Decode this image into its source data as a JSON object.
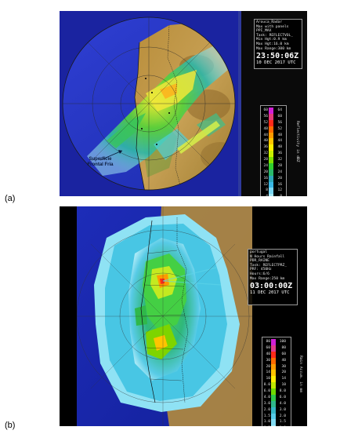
{
  "figure_a": {
    "label": "(a)",
    "info": {
      "line1": "Arouca_Radar",
      "line2": "Max with panels",
      "line3": "PPI_MAX",
      "line4": "Task: REFLECTVOL_",
      "line5": "Min Hgt:0.9 km",
      "line6": "Max Hgt:16.0 km",
      "line7": "Max Range:300 km",
      "time": "23:50:06Z",
      "date": "10 DEC 2017 UTC"
    },
    "legend": {
      "unit": "Reflectivity in dBZ",
      "rows": [
        {
          "l": "60",
          "r": "64",
          "color": "#d21fd6"
        },
        {
          "l": "56",
          "r": "60",
          "color": "#e33a7a"
        },
        {
          "l": "52",
          "r": "56",
          "color": "#ff2a1a"
        },
        {
          "l": "48",
          "r": "52",
          "color": "#ff6a00"
        },
        {
          "l": "44",
          "r": "48",
          "color": "#ff9a00"
        },
        {
          "l": "40",
          "r": "44",
          "color": "#ffc400"
        },
        {
          "l": "36",
          "r": "40",
          "color": "#ffee00"
        },
        {
          "l": "32",
          "r": "36",
          "color": "#c9f000"
        },
        {
          "l": "28",
          "r": "32",
          "color": "#7fe000"
        },
        {
          "l": "24",
          "r": "28",
          "color": "#2fcf2f"
        },
        {
          "l": "20",
          "r": "24",
          "color": "#29b86a"
        },
        {
          "l": "16",
          "r": "20",
          "color": "#2ea7b8"
        },
        {
          "l": "12",
          "r": "16",
          "color": "#3ab8e6"
        },
        {
          "l": "8",
          "r": "12",
          "color": "#7ad6f2"
        },
        {
          "l": "4",
          "r": "8",
          "color": "#a6e8f6"
        },
        {
          "l": "0",
          "r": "4",
          "color": "#bff2f8"
        }
      ]
    },
    "annotation": {
      "line1": "Superfície",
      "line2": "Frontal Fria"
    }
  },
  "figure_b": {
    "label": "(b)",
    "info": {
      "line1": "portugal",
      "line2": "N Hours Rainfall",
      "line3": "PDR_RAINE",
      "line4": "Task: REFLECTPRZ_",
      "line5": "PRF: 450Hz",
      "line6": "Hours:6/6",
      "line7": "Max Range:250 km",
      "time": "03:00:00Z",
      "date": "11 DEC 2017 UTC"
    },
    "legend": {
      "unit": "Rain Accum. in mm",
      "rows": [
        {
          "l": "80",
          "r": "100",
          "color": "#d21fd6"
        },
        {
          "l": "60",
          "r": "80",
          "color": "#e03a8c"
        },
        {
          "l": "40",
          "r": "60",
          "color": "#ff2a1a"
        },
        {
          "l": "30",
          "r": "40",
          "color": "#ff6a00"
        },
        {
          "l": "20",
          "r": "30",
          "color": "#ff9a00"
        },
        {
          "l": "14",
          "r": "20",
          "color": "#ffc400"
        },
        {
          "l": "10",
          "r": "14",
          "color": "#ffee00"
        },
        {
          "l": "8.0",
          "r": "10",
          "color": "#bfe800"
        },
        {
          "l": "6.0",
          "r": "8.0",
          "color": "#6fd800"
        },
        {
          "l": "4.0",
          "r": "6.0",
          "color": "#2fc64a"
        },
        {
          "l": "3.0",
          "r": "4.0",
          "color": "#2fb78c"
        },
        {
          "l": "2.0",
          "r": "3.0",
          "color": "#35b6c6"
        },
        {
          "l": "1.5",
          "r": "2.0",
          "color": "#55cbe8"
        },
        {
          "l": "1.0",
          "r": "1.5",
          "color": "#83dcf3"
        },
        {
          "l": "0.5",
          "r": "1.0",
          "color": "#a9e9f7"
        },
        {
          "l": "0.1",
          "r": "0.5",
          "color": "#c9f4fa"
        }
      ]
    }
  }
}
